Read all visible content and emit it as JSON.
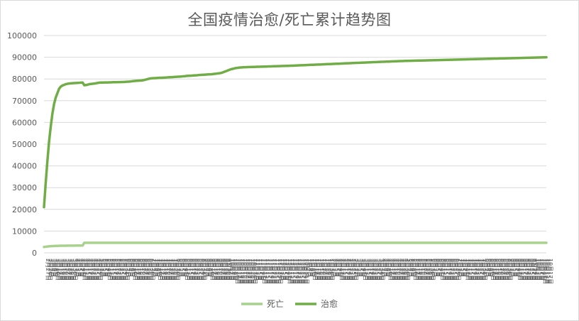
{
  "chart_data": {
    "type": "line",
    "title": "全国疫情治愈/死亡累计趋势图",
    "xlabel": "",
    "ylabel": "",
    "ylim": [
      0,
      100000
    ],
    "yticks": [
      0,
      10000,
      20000,
      30000,
      40000,
      50000,
      60000,
      70000,
      80000,
      90000,
      100000
    ],
    "grid": true,
    "legend_position": "bottom",
    "x": [
      "2月27日",
      "2月29日",
      "3月2日",
      "3月4日",
      "3月6日",
      "3月8日",
      "3月10日",
      "3月12日",
      "3月14日",
      "3月16日",
      "3月18日",
      "3月20日",
      "3月22日",
      "3月24日",
      "3月26日",
      "3月28日",
      "3月30日",
      "4月1日",
      "4月3日",
      "4月5日",
      "4月7日",
      "4月9日",
      "4月11日",
      "4月13日",
      "4月15日",
      "4月17日",
      "4月19日",
      "4月21日",
      "4月23日",
      "4月25日",
      "4月27日",
      "4月29日",
      "5月1日",
      "5月3日",
      "5月5日",
      "5月7日",
      "5月9日",
      "5月11日",
      "5月13日",
      "5月15日",
      "5月17日",
      "5月19日",
      "5月21日",
      "5月23日",
      "5月25日",
      "5月27日",
      "5月29日",
      "5月31日",
      "6月2日",
      "6月4日",
      "6月6日",
      "6月8日",
      "6月10日",
      "6月12日",
      "6月14日",
      "6月16日",
      "6月18日",
      "6月20日",
      "6月22日",
      "6月24日",
      "6月26日",
      "6月28日",
      "6月30日",
      "7月2日",
      "7月4日",
      "7月6日",
      "7月8日",
      "7月10日",
      "7月12日",
      "7月14日",
      "7月16日",
      "7月18日",
      "7月20日",
      "7月22日",
      "7月24日",
      "7月26日",
      "7月28日",
      "7月30日",
      "8月1日",
      "8月3日",
      "8月5日",
      "8月7日",
      "8月9日",
      "8月11日",
      "8月13日",
      "8月15日",
      "8月17日",
      "8月19日",
      "8月21日",
      "8月23日",
      "8月25日",
      "8月27日",
      "8月29日",
      "8月31日",
      "9月2日",
      "9月4日",
      "9月6日",
      "9月8日",
      "9月10日",
      "9月12日",
      "9月14日",
      "9月16日",
      "9月18日",
      "9月20日",
      "9月22日",
      "9月24日",
      "9月26日",
      "9月28日",
      "9月30日",
      "10月2日",
      "10月4日",
      "10月6日",
      "10月8日",
      "10月10日",
      "10月12日",
      "10月14日",
      "10月16日",
      "10月18日",
      "10月20日",
      "10月22日",
      "10月24日",
      "10月26日",
      "10月28日",
      "10月30日",
      "11月1日",
      "11月3日",
      "11月5日",
      "11月7日",
      "11月9日",
      "11月11日",
      "11月13日",
      "11月15日",
      "11月17日",
      "11月19日",
      "11月21日",
      "11月23日",
      "11月25日",
      "11月27日",
      "11月29日",
      "12月1日",
      "12月3日",
      "12月5日",
      "12月7日",
      "12月9日",
      "12月11日",
      "12月13日",
      "12月15日",
      "12月17日",
      "12月19日",
      "12月21日",
      "12月23日",
      "12月25日",
      "12月27日",
      "12月29日",
      "12月31日",
      "1月2日",
      "1月4日",
      "1月6日",
      "1月8日",
      "1月10日",
      "1月12日",
      "1月14日",
      "1月16日",
      "1月18日",
      "1月20日",
      "1月22日",
      "1月24日",
      "1月26日",
      "1月28日",
      "1月30日",
      "2月1日",
      "2月3日",
      "2月5日",
      "2月7日",
      "2月9日",
      "2月11日",
      "2月13日",
      "2月15日",
      "2月17日",
      "2月19日",
      "2月21日",
      "2月23日",
      "2月25日",
      "2月27日",
      "3月1日",
      "3月3日",
      "3月5日",
      "3月7日",
      "3月9日",
      "3月11日",
      "3月13日",
      "3月15日",
      "3月17日",
      "3月19日",
      "3月21日",
      "3月23日",
      "3月25日",
      "3月27日",
      "3月29日",
      "3月31日",
      "4月2日",
      "4月4日",
      "4月6日",
      "4月8日",
      "4月10日",
      "4月12日",
      "4月14日",
      "4月16日",
      "4月18日",
      "4月20日",
      "4月22日",
      "4月24日",
      "4月26日",
      "4月28日",
      "4月30日",
      "5月2日",
      "5月4日",
      "5月6日",
      "5月8日",
      "5月10日",
      "5月12日",
      "5月14日",
      "5月16日",
      "5月18日",
      "5月20日",
      "5月22日",
      "5月24日",
      "5月26日",
      "5月28日",
      "5月30日",
      "6月1日",
      "6月3日",
      "6月5日",
      "6月7日",
      "6月9日",
      "6月11日",
      "6月13日",
      "6月15日",
      "6月17日",
      "6月19日",
      "6月21日",
      "6月23日",
      "6月25日",
      "6月27日",
      "6月29日",
      "7月1日",
      "7月3日",
      "7月5日",
      "7月7日",
      "7月9日",
      "7月11日",
      "7月13日",
      "7月15日",
      "7月17日",
      "7月19日",
      "7月21日",
      "7月23日",
      "7月25日",
      "7月27日",
      "7月29日",
      "7月31日",
      "8月2日",
      "8月4日",
      "8月6日",
      "8月8日",
      "8月10日",
      "8月12日",
      "8月14日",
      "8月16日",
      "8月18日",
      "8月20日",
      "8月22日",
      "8月24日",
      "8月26日",
      "8月28日",
      "8月30日",
      "9月1日",
      "9月3日",
      "9月5日",
      "9月7日",
      "9月9日",
      "9月11日",
      "9月13日",
      "9月15日",
      "9月17日",
      "9月19日",
      "9月21日",
      "9月23日",
      "9月25日",
      "9月27日",
      "9月29日",
      "10月1日",
      "10月3日",
      "10月5日",
      "10月7日",
      "10月9日",
      "10月11日",
      "10月13日",
      "10月15日",
      "10月17日"
    ],
    "series": [
      {
        "name": "死亡",
        "color": "#a9d18e",
        "values": [
          2700,
          2800,
          2900,
          3000,
          3050,
          3100,
          3150,
          3180,
          3200,
          3230,
          3250,
          3260,
          3270,
          3280,
          3290,
          3300,
          3300,
          3310,
          3320,
          3330,
          3330,
          3335,
          3340,
          3340,
          4630,
          4632,
          4632,
          4632,
          4632,
          4632,
          4632,
          4632,
          4632,
          4632,
          4632,
          4633,
          4633,
          4633,
          4634,
          4634,
          4634,
          4634,
          4634,
          4634,
          4634,
          4634,
          4634,
          4634,
          4634,
          4634,
          4634,
          4634,
          4634,
          4634,
          4634,
          4634,
          4634,
          4634,
          4634,
          4634,
          4634,
          4634,
          4634,
          4634,
          4634,
          4634,
          4634,
          4634,
          4634,
          4634,
          4634,
          4634,
          4634,
          4634,
          4634,
          4634,
          4634,
          4634,
          4634,
          4634,
          4634,
          4634,
          4634,
          4634,
          4634,
          4634,
          4634,
          4634,
          4634,
          4634,
          4634,
          4634,
          4634,
          4634,
          4634,
          4634,
          4634,
          4634,
          4634,
          4634,
          4634,
          4634,
          4634,
          4634,
          4634,
          4634,
          4634,
          4634,
          4634,
          4634,
          4634,
          4634,
          4634,
          4634,
          4634,
          4634,
          4634,
          4634,
          4634,
          4634,
          4634,
          4634,
          4634,
          4634,
          4634,
          4634,
          4634,
          4634,
          4634,
          4634,
          4634,
          4634,
          4634,
          4634,
          4634,
          4634,
          4634,
          4634,
          4634,
          4634,
          4634,
          4634,
          4634,
          4634,
          4634,
          4634,
          4634,
          4634,
          4634,
          4634,
          4634,
          4634,
          4634,
          4634,
          4634,
          4634,
          4634,
          4634,
          4634,
          4634,
          4634,
          4634,
          4634,
          4634,
          4634,
          4634,
          4634,
          4634,
          4634,
          4634,
          4634,
          4634,
          4634,
          4634,
          4634,
          4634,
          4634,
          4634,
          4634,
          4634,
          4634,
          4634,
          4634,
          4634,
          4634,
          4634,
          4634,
          4634,
          4634,
          4634,
          4634,
          4634,
          4634,
          4634,
          4634,
          4634,
          4634,
          4634,
          4634,
          4634,
          4634,
          4634,
          4634,
          4634,
          4634,
          4634,
          4634,
          4634,
          4634,
          4634,
          4634,
          4634,
          4634,
          4634,
          4634,
          4634,
          4634,
          4634,
          4634,
          4634,
          4634,
          4634,
          4634,
          4634,
          4634,
          4634,
          4634,
          4634,
          4634,
          4634,
          4634,
          4634,
          4634,
          4634,
          4634,
          4634,
          4634,
          4634,
          4634,
          4634,
          4634,
          4634,
          4634,
          4634,
          4634,
          4634,
          4634,
          4634,
          4634,
          4634,
          4634,
          4634,
          4634,
          4634,
          4634,
          4634,
          4634,
          4634,
          4634,
          4634,
          4634,
          4634,
          4634,
          4634,
          4634,
          4634,
          4634,
          4634,
          4634,
          4634,
          4634,
          4634,
          4634,
          4634,
          4634,
          4634,
          4634,
          4634,
          4634,
          4634,
          4634,
          4634,
          4634,
          4634,
          4634,
          4634,
          4634,
          4634,
          4634,
          4634,
          4634,
          4634,
          4634,
          4634,
          4634,
          4634,
          4634,
          4634,
          4634,
          4634
        ]
      },
      {
        "name": "治愈",
        "color": "#70ad47",
        "values": [
          21000,
          32000,
          42000,
          51000,
          58000,
          64000,
          68500,
          71500,
          73500,
          75500,
          76500,
          77000,
          77300,
          77600,
          77800,
          77900,
          78000,
          78050,
          78100,
          78150,
          78200,
          78250,
          78300,
          78350,
          77100,
          77200,
          77400,
          77600,
          77700,
          77800,
          77900,
          78000,
          78200,
          78300,
          78350,
          78350,
          78400,
          78400,
          78400,
          78450,
          78450,
          78500,
          78500,
          78500,
          78550,
          78550,
          78600,
          78600,
          78650,
          78700,
          78750,
          78800,
          78900,
          79000,
          79100,
          79150,
          79200,
          79250,
          79300,
          79400,
          79600,
          79800,
          80000,
          80200,
          80300,
          80350,
          80400,
          80450,
          80500,
          80550,
          80550,
          80600,
          80650,
          80700,
          80750,
          80800,
          80850,
          80900,
          80950,
          81000,
          81050,
          81100,
          81150,
          81250,
          81300,
          81400,
          81450,
          81500,
          81550,
          81600,
          81650,
          81700,
          81800,
          81850,
          81900,
          81950,
          82000,
          82050,
          82100,
          82150,
          82200,
          82300,
          82400,
          82500,
          82600,
          82700,
          82900,
          83200,
          83500,
          83800,
          84100,
          84400,
          84600,
          84800,
          85000,
          85100,
          85200,
          85300,
          85350,
          85400,
          85420,
          85450,
          85480,
          85500,
          85520,
          85550,
          85580,
          85600,
          85620,
          85650,
          85680,
          85700,
          85720,
          85750,
          85780,
          85800,
          85820,
          85850,
          85880,
          85900,
          85920,
          85950,
          85980,
          86000,
          86020,
          86050,
          86080,
          86100,
          86130,
          86160,
          86200,
          86230,
          86260,
          86300,
          86330,
          86360,
          86400,
          86430,
          86460,
          86500,
          86530,
          86560,
          86600,
          86630,
          86660,
          86700,
          86730,
          86760,
          86800,
          86830,
          86860,
          86900,
          86930,
          86960,
          87000,
          87030,
          87060,
          87100,
          87130,
          87160,
          87200,
          87230,
          87260,
          87300,
          87330,
          87360,
          87400,
          87430,
          87460,
          87500,
          87530,
          87560,
          87600,
          87630,
          87660,
          87700,
          87730,
          87760,
          87800,
          87830,
          87860,
          87890,
          87920,
          87950,
          87980,
          88010,
          88040,
          88070,
          88100,
          88130,
          88160,
          88190,
          88220,
          88250,
          88280,
          88300,
          88320,
          88340,
          88360,
          88380,
          88400,
          88420,
          88440,
          88460,
          88480,
          88500,
          88520,
          88540,
          88560,
          88580,
          88600,
          88620,
          88640,
          88660,
          88680,
          88700,
          88720,
          88740,
          88760,
          88780,
          88800,
          88820,
          88840,
          88860,
          88880,
          88900,
          88920,
          88940,
          88960,
          88980,
          89000,
          89020,
          89040,
          89060,
          89080,
          89100,
          89120,
          89140,
          89160,
          89180,
          89200,
          89220,
          89240,
          89260,
          89280,
          89300,
          89320,
          89340,
          89360,
          89380,
          89400,
          89420,
          89440,
          89460,
          89480,
          89500,
          89520,
          89540,
          89560,
          89580,
          89600,
          89620,
          89640,
          89660,
          89680,
          89700,
          89720,
          89740,
          89760,
          89780,
          89800,
          89820,
          89840,
          89860,
          89880,
          89900,
          89920,
          89940,
          89960,
          89980
        ]
      }
    ]
  }
}
